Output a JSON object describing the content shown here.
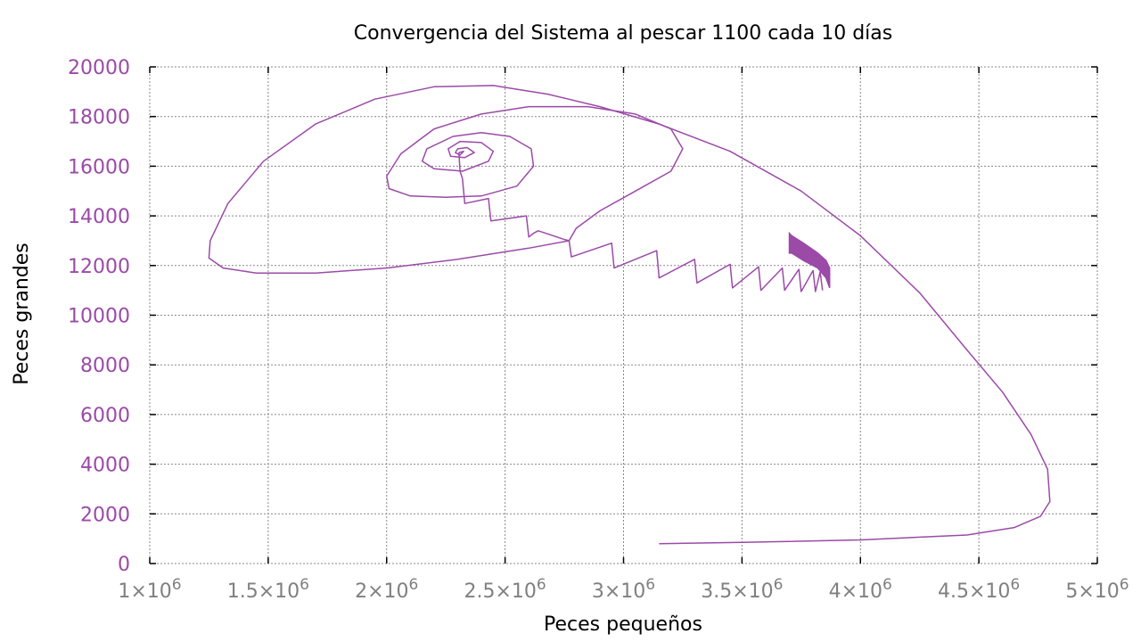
{
  "chart_data": {
    "type": "line",
    "title": "Convergencia del Sistema al pescar 1100 cada 10 días",
    "xlabel": "Peces pequeños",
    "ylabel": "Peces grandes",
    "xlim": [
      1000000,
      5000000
    ],
    "ylim": [
      0,
      20000
    ],
    "xticks": [
      1000000,
      1500000,
      2000000,
      2500000,
      3000000,
      3500000,
      4000000,
      4500000,
      5000000
    ],
    "xtick_labels": [
      {
        "base": "1×10",
        "exp": "6"
      },
      {
        "base": "1.5×10",
        "exp": "6"
      },
      {
        "base": "2×10",
        "exp": "6"
      },
      {
        "base": "2.5×10",
        "exp": "6"
      },
      {
        "base": "3×10",
        "exp": "6"
      },
      {
        "base": "3.5×10",
        "exp": "6"
      },
      {
        "base": "4×10",
        "exp": "6"
      },
      {
        "base": "4.5×10",
        "exp": "6"
      },
      {
        "base": "5×10",
        "exp": "6"
      }
    ],
    "yticks": [
      0,
      2000,
      4000,
      6000,
      8000,
      10000,
      12000,
      14000,
      16000,
      18000,
      20000
    ],
    "ytick_labels": [
      "0",
      "2000",
      "4000",
      "6000",
      "8000",
      "10000",
      "12000",
      "14000",
      "16000",
      "18000",
      "20000"
    ],
    "grid": true,
    "line_color": "#9b4aa8",
    "ytick_color": "#9b4aa8",
    "xtick_color": "#808080",
    "series": [
      {
        "x": [
          3150000,
          3500000,
          4000000,
          4450000,
          4650000,
          4760000,
          4800000,
          4790000,
          4720000,
          4600000,
          4450000,
          4250000,
          4000000,
          3750000,
          3450000,
          3150000,
          2900000,
          2680000,
          2450000,
          2200000,
          1950000,
          1700000,
          1480000,
          1330000,
          1255000,
          1250000,
          1310000,
          1450000,
          1700000,
          2000000,
          2300000,
          2600000,
          2770000
        ],
        "y": [
          800,
          850,
          950,
          1150,
          1450,
          1900,
          2500,
          3800,
          5200,
          6900,
          8600,
          10900,
          13200,
          15000,
          16600,
          17700,
          18400,
          18900,
          19250,
          19200,
          18700,
          17700,
          16200,
          14500,
          13000,
          12300,
          11900,
          11700,
          11700,
          11900,
          12250,
          12700,
          13000
        ]
      },
      {
        "x": [
          2770000,
          2780000,
          2950000,
          2960000,
          3140000,
          3150000,
          3300000,
          3310000,
          3450000,
          3460000,
          3570000,
          3580000,
          3670000,
          3680000,
          3740000,
          3750000,
          3800000,
          3810000,
          3830000,
          3840000
        ],
        "y": [
          13000,
          12350,
          12900,
          11900,
          12600,
          11500,
          12250,
          11300,
          12050,
          11100,
          11950,
          11000,
          11900,
          11000,
          11850,
          10950,
          11800,
          10950,
          11750,
          11000
        ]
      },
      {
        "x": [
          2770000,
          2750000,
          2640000,
          2620000,
          2600000,
          2590000,
          2440000,
          2430000,
          2330000,
          2320000,
          2310000,
          2305000
        ],
        "y": [
          13000,
          13050,
          13400,
          13300,
          13150,
          14000,
          13800,
          14700,
          14500,
          15500,
          15800,
          16550
        ]
      },
      {
        "x": [
          2770000,
          2800000,
          2900000,
          3050000,
          3200000,
          3250000,
          3200000,
          3050000,
          2850000,
          2600000,
          2400000,
          2200000,
          2060000,
          2000000,
          2010000,
          2100000,
          2250000,
          2400000,
          2550000,
          2620000,
          2610000,
          2520000,
          2400000,
          2280000,
          2170000,
          2150000,
          2200000,
          2320000,
          2430000,
          2450000,
          2400000,
          2310000,
          2260000,
          2270000,
          2330000,
          2370000,
          2340000,
          2300000,
          2290000,
          2310000,
          2325000,
          2305000
        ],
        "y": [
          13000,
          13500,
          14200,
          15000,
          15800,
          16700,
          17500,
          18100,
          18400,
          18400,
          18100,
          17500,
          16500,
          15600,
          15100,
          14800,
          14750,
          14800,
          15200,
          16000,
          16700,
          17200,
          17350,
          17200,
          16700,
          16200,
          15900,
          15800,
          16200,
          16600,
          16950,
          17000,
          16700,
          16400,
          16350,
          16550,
          16750,
          16700,
          16550,
          16450,
          16600,
          16550
        ]
      },
      {
        "filled_region": true,
        "x": [
          3700000,
          3710000,
          3760000,
          3820000,
          3855000,
          3870000,
          3870000,
          3855000,
          3820000,
          3760000,
          3710000,
          3700000
        ],
        "y": [
          13300,
          13200,
          12900,
          12500,
          12200,
          11900,
          11100,
          11500,
          11900,
          12200,
          12500,
          12500
        ]
      }
    ]
  }
}
